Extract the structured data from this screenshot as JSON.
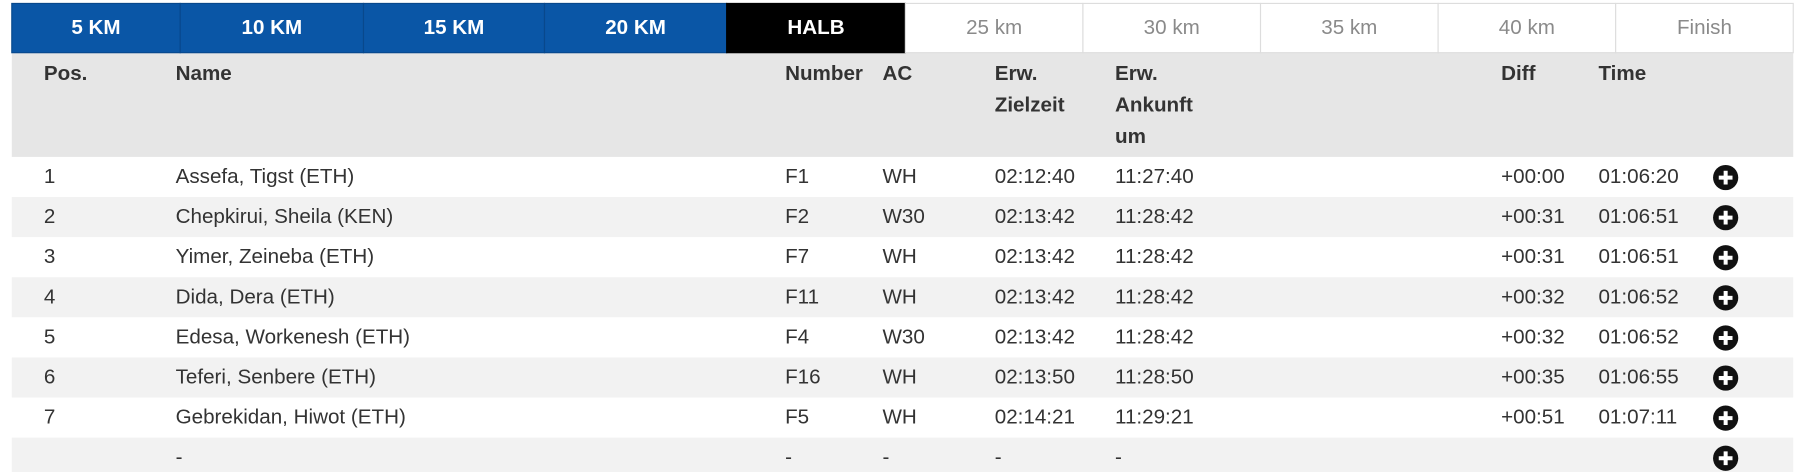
{
  "tabs": [
    "5 KM",
    "10 KM",
    "15 KM",
    "20 KM",
    "HALB",
    "25 km",
    "30 km",
    "35 km",
    "40 km",
    "Finish"
  ],
  "table": {
    "headers": [
      [
        "Pos."
      ],
      [
        "Name"
      ],
      [
        "Number"
      ],
      [
        "AC"
      ],
      [
        "Erw.",
        "Zielzeit"
      ],
      [
        "Erw.",
        "Ankunft",
        "um"
      ],
      [
        "Diff"
      ],
      [
        "Time"
      ]
    ],
    "rows": [
      [
        "1",
        "Assefa, Tigst (ETH)",
        "F1",
        "WH",
        "02:12:40",
        "11:27:40",
        "+00:00",
        "01:06:20"
      ],
      [
        "2",
        "Chepkirui, Sheila (KEN)",
        "F2",
        "W30",
        "02:13:42",
        "11:28:42",
        "+00:31",
        "01:06:51"
      ],
      [
        "3",
        "Yimer, Zeineba (ETH)",
        "F7",
        "WH",
        "02:13:42",
        "11:28:42",
        "+00:31",
        "01:06:51"
      ],
      [
        "4",
        "Dida, Dera (ETH)",
        "F11",
        "WH",
        "02:13:42",
        "11:28:42",
        "+00:32",
        "01:06:52"
      ],
      [
        "5",
        "Edesa, Workenesh (ETH)",
        "F4",
        "W30",
        "02:13:42",
        "11:28:42",
        "+00:32",
        "01:06:52"
      ],
      [
        "6",
        "Teferi, Senbere (ETH)",
        "F16",
        "WH",
        "02:13:50",
        "11:28:50",
        "+00:35",
        "01:06:55"
      ],
      [
        "7",
        "Gebrekidan, Hiwot (ETH)",
        "F5",
        "WH",
        "02:14:21",
        "11:29:21",
        "+00:51",
        "01:07:11"
      ],
      [
        null,
        "-",
        "-",
        "-",
        "-",
        "-",
        null,
        null
      ]
    ]
  }
}
